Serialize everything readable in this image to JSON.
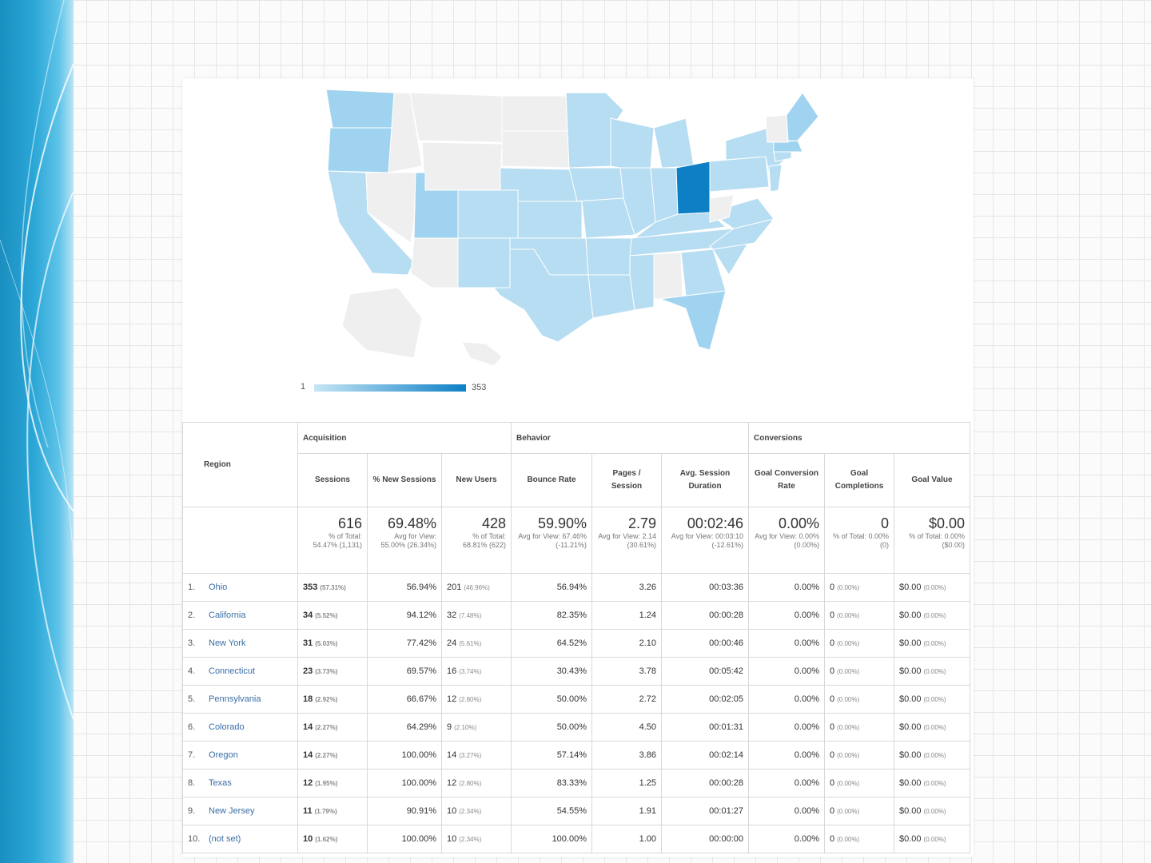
{
  "map": {
    "legend_min": "1",
    "legend_max": "353",
    "colors": {
      "max": "#0d7fc4",
      "high": "#9fd3ef",
      "mid": "#b6ddf2",
      "low": "#cbe7f6",
      "none": "#efefef"
    }
  },
  "table": {
    "groups": {
      "region": "Region",
      "acquisition": "Acquisition",
      "behavior": "Behavior",
      "conversions": "Conversions"
    },
    "columns": {
      "sessions": "Sessions",
      "pct_new": "% New Sessions",
      "new_users": "New Users",
      "bounce": "Bounce Rate",
      "pages": "Pages / Session",
      "duration": "Avg. Session Duration",
      "conv_rate": "Goal Conversion Rate",
      "completions": "Goal Completions",
      "goal_value": "Goal Value"
    },
    "totals": {
      "sessions": {
        "value": "616",
        "sub": "% of Total: 54.47% (1,131)"
      },
      "pct_new": {
        "value": "69.48%",
        "sub": "Avg for View: 55.00% (26.34%)"
      },
      "new_users": {
        "value": "428",
        "sub": "% of Total: 68.81% (622)"
      },
      "bounce": {
        "value": "59.90%",
        "sub": "Avg for View: 67.46% (-11.21%)"
      },
      "pages": {
        "value": "2.79",
        "sub": "Avg for View: 2.14 (30.61%)"
      },
      "duration": {
        "value": "00:02:46",
        "sub": "Avg for View: 00:03:10 (-12.61%)"
      },
      "conv_rate": {
        "value": "0.00%",
        "sub": "Avg for View: 0.00% (0.00%)"
      },
      "completions": {
        "value": "0",
        "sub": "% of Total: 0.00% (0)"
      },
      "goal_value": {
        "value": "$0.00",
        "sub": "% of Total: 0.00% ($0.00)"
      }
    },
    "rows": [
      {
        "n": "1.",
        "region": "Ohio",
        "sessions": "353",
        "sessions_pct": "(57.31%)",
        "pct_new": "56.94%",
        "new_users": "201",
        "new_users_pct": "(46.96%)",
        "bounce": "56.94%",
        "pages": "3.26",
        "duration": "00:03:36",
        "conv": "0.00%",
        "comp": "0",
        "comp_pct": "(0.00%)",
        "gv": "$0.00",
        "gv_pct": "(0.00%)"
      },
      {
        "n": "2.",
        "region": "California",
        "sessions": "34",
        "sessions_pct": "(5.52%)",
        "pct_new": "94.12%",
        "new_users": "32",
        "new_users_pct": "(7.48%)",
        "bounce": "82.35%",
        "pages": "1.24",
        "duration": "00:00:28",
        "conv": "0.00%",
        "comp": "0",
        "comp_pct": "(0.00%)",
        "gv": "$0.00",
        "gv_pct": "(0.00%)"
      },
      {
        "n": "3.",
        "region": "New York",
        "sessions": "31",
        "sessions_pct": "(5.03%)",
        "pct_new": "77.42%",
        "new_users": "24",
        "new_users_pct": "(5.61%)",
        "bounce": "64.52%",
        "pages": "2.10",
        "duration": "00:00:46",
        "conv": "0.00%",
        "comp": "0",
        "comp_pct": "(0.00%)",
        "gv": "$0.00",
        "gv_pct": "(0.00%)"
      },
      {
        "n": "4.",
        "region": "Connecticut",
        "sessions": "23",
        "sessions_pct": "(3.73%)",
        "pct_new": "69.57%",
        "new_users": "16",
        "new_users_pct": "(3.74%)",
        "bounce": "30.43%",
        "pages": "3.78",
        "duration": "00:05:42",
        "conv": "0.00%",
        "comp": "0",
        "comp_pct": "(0.00%)",
        "gv": "$0.00",
        "gv_pct": "(0.00%)"
      },
      {
        "n": "5.",
        "region": "Pennsylvania",
        "sessions": "18",
        "sessions_pct": "(2.92%)",
        "pct_new": "66.67%",
        "new_users": "12",
        "new_users_pct": "(2.80%)",
        "bounce": "50.00%",
        "pages": "2.72",
        "duration": "00:02:05",
        "conv": "0.00%",
        "comp": "0",
        "comp_pct": "(0.00%)",
        "gv": "$0.00",
        "gv_pct": "(0.00%)"
      },
      {
        "n": "6.",
        "region": "Colorado",
        "sessions": "14",
        "sessions_pct": "(2.27%)",
        "pct_new": "64.29%",
        "new_users": "9",
        "new_users_pct": "(2.10%)",
        "bounce": "50.00%",
        "pages": "4.50",
        "duration": "00:01:31",
        "conv": "0.00%",
        "comp": "0",
        "comp_pct": "(0.00%)",
        "gv": "$0.00",
        "gv_pct": "(0.00%)"
      },
      {
        "n": "7.",
        "region": "Oregon",
        "sessions": "14",
        "sessions_pct": "(2.27%)",
        "pct_new": "100.00%",
        "new_users": "14",
        "new_users_pct": "(3.27%)",
        "bounce": "57.14%",
        "pages": "3.86",
        "duration": "00:02:14",
        "conv": "0.00%",
        "comp": "0",
        "comp_pct": "(0.00%)",
        "gv": "$0.00",
        "gv_pct": "(0.00%)"
      },
      {
        "n": "8.",
        "region": "Texas",
        "sessions": "12",
        "sessions_pct": "(1.95%)",
        "pct_new": "100.00%",
        "new_users": "12",
        "new_users_pct": "(2.80%)",
        "bounce": "83.33%",
        "pages": "1.25",
        "duration": "00:00:28",
        "conv": "0.00%",
        "comp": "0",
        "comp_pct": "(0.00%)",
        "gv": "$0.00",
        "gv_pct": "(0.00%)"
      },
      {
        "n": "9.",
        "region": "New Jersey",
        "sessions": "11",
        "sessions_pct": "(1.79%)",
        "pct_new": "90.91%",
        "new_users": "10",
        "new_users_pct": "(2.34%)",
        "bounce": "54.55%",
        "pages": "1.91",
        "duration": "00:01:27",
        "conv": "0.00%",
        "comp": "0",
        "comp_pct": "(0.00%)",
        "gv": "$0.00",
        "gv_pct": "(0.00%)"
      },
      {
        "n": "10.",
        "region": "(not set)",
        "sessions": "10",
        "sessions_pct": "(1.62%)",
        "pct_new": "100.00%",
        "new_users": "10",
        "new_users_pct": "(2.34%)",
        "bounce": "100.00%",
        "pages": "1.00",
        "duration": "00:00:00",
        "conv": "0.00%",
        "comp": "0",
        "comp_pct": "(0.00%)",
        "gv": "$0.00",
        "gv_pct": "(0.00%)"
      }
    ]
  }
}
